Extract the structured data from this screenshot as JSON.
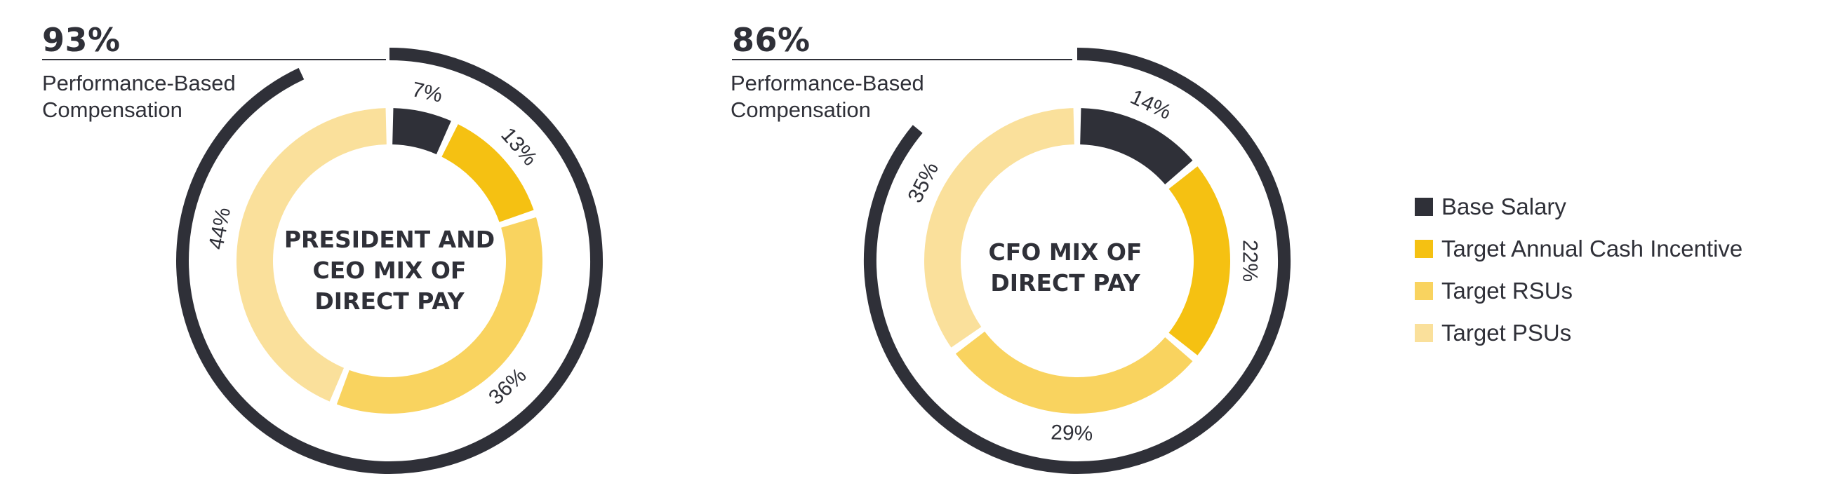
{
  "colors": {
    "base_salary": "#2f3038",
    "target_annual_cash_incentive": "#f5c112",
    "target_rsus": "#f9d35f",
    "target_psus": "#fae09b",
    "text": "#2f3038"
  },
  "legend": {
    "items": [
      {
        "label": "Base Salary",
        "color": "#2f3038"
      },
      {
        "label": "Target Annual Cash Incentive",
        "color": "#f5c112"
      },
      {
        "label": "Target RSUs",
        "color": "#f9d35f"
      },
      {
        "label": "Target PSUs",
        "color": "#fae09b"
      }
    ]
  },
  "chart_data": [
    {
      "type": "pie",
      "variant": "donut",
      "title": "PRESIDENT AND CEO MIX OF DIRECT PAY",
      "title_lines": [
        "PRESIDENT AND",
        "CEO MIX OF",
        "DIRECT PAY"
      ],
      "categories": [
        "Base Salary",
        "Target Annual Cash Incentive",
        "Target RSUs",
        "Target PSUs"
      ],
      "values": [
        7,
        13,
        36,
        44
      ],
      "value_labels": [
        "7%",
        "13%",
        "36%",
        "44%"
      ],
      "outer_arc": {
        "value": 93,
        "label": "93%",
        "caption_lines": [
          "Performance-Based",
          "Compensation"
        ]
      }
    },
    {
      "type": "pie",
      "variant": "donut",
      "title": "CFO MIX OF DIRECT PAY",
      "title_lines": [
        "CFO MIX OF",
        "DIRECT PAY"
      ],
      "categories": [
        "Base Salary",
        "Target Annual Cash Incentive",
        "Target RSUs",
        "Target PSUs"
      ],
      "values": [
        14,
        22,
        29,
        35
      ],
      "value_labels": [
        "14%",
        "22%",
        "29%",
        "35%"
      ],
      "outer_arc": {
        "value": 86,
        "label": "86%",
        "caption_lines": [
          "Performance-Based",
          "Compensation"
        ]
      }
    }
  ]
}
